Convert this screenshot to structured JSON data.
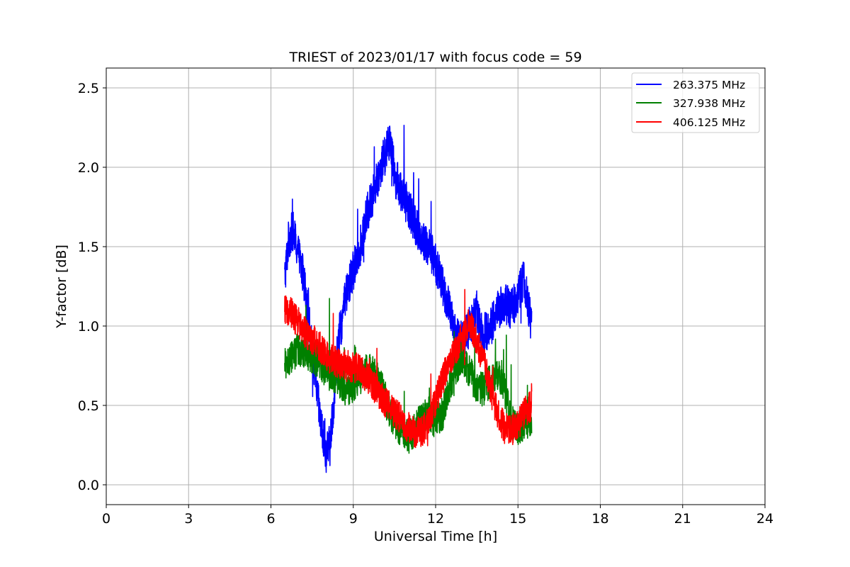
{
  "chart_data": {
    "type": "line",
    "title": "TRIEST of 2023/01/17 with focus code = 59",
    "xlabel": "Universal Time [h]",
    "ylabel": "Y-factor [dB]",
    "xlim": [
      0,
      24
    ],
    "ylim": [
      -0.125,
      2.625
    ],
    "xticks": [
      0,
      3,
      6,
      9,
      12,
      15,
      18,
      21,
      24
    ],
    "xtick_labels": [
      "0",
      "3",
      "6",
      "9",
      "12",
      "15",
      "18",
      "21",
      "24"
    ],
    "yticks": [
      0.0,
      0.5,
      1.0,
      1.5,
      2.0,
      2.5
    ],
    "ytick_labels": [
      "0.0",
      "0.5",
      "1.0",
      "1.5",
      "2.0",
      "2.5"
    ],
    "grid": true,
    "legend_position": "top-right",
    "series": [
      {
        "name": "263.375 MHz",
        "color": "#0000ff",
        "x": [
          6.5,
          6.65,
          6.8,
          7.0,
          7.2,
          7.4,
          7.6,
          7.8,
          8.0,
          8.15,
          8.3,
          8.5,
          8.75,
          9.0,
          9.25,
          9.5,
          9.75,
          10.0,
          10.2,
          10.35,
          10.5,
          10.75,
          11.0,
          11.25,
          11.5,
          11.75,
          12.0,
          12.25,
          12.5,
          12.75,
          13.0,
          13.25,
          13.5,
          13.75,
          14.0,
          14.25,
          14.5,
          14.75,
          15.0,
          15.2,
          15.5
        ],
        "y": [
          1.3,
          1.55,
          1.6,
          1.45,
          1.3,
          1.0,
          0.7,
          0.4,
          0.2,
          0.25,
          0.55,
          0.95,
          1.2,
          1.35,
          1.5,
          1.7,
          1.85,
          2.0,
          2.1,
          2.2,
          1.95,
          1.85,
          1.75,
          1.65,
          1.55,
          1.5,
          1.4,
          1.25,
          1.1,
          0.95,
          0.9,
          1.0,
          1.1,
          0.95,
          1.0,
          1.1,
          1.15,
          1.1,
          1.2,
          1.3,
          1.0
        ]
      },
      {
        "name": "327.938 MHz",
        "color": "#008000",
        "x": [
          6.5,
          6.75,
          7.0,
          7.25,
          7.5,
          7.75,
          8.0,
          8.25,
          8.5,
          8.75,
          9.0,
          9.25,
          9.5,
          9.75,
          10.0,
          10.25,
          10.5,
          10.75,
          11.0,
          11.25,
          11.5,
          11.75,
          12.0,
          12.25,
          12.5,
          12.75,
          13.0,
          13.25,
          13.5,
          13.75,
          14.0,
          14.25,
          14.5,
          14.75,
          15.0,
          15.25,
          15.5
        ],
        "y": [
          0.75,
          0.8,
          0.85,
          0.85,
          0.8,
          0.78,
          0.72,
          0.68,
          0.65,
          0.6,
          0.62,
          0.68,
          0.72,
          0.7,
          0.62,
          0.5,
          0.4,
          0.35,
          0.3,
          0.35,
          0.42,
          0.45,
          0.4,
          0.45,
          0.6,
          0.75,
          0.8,
          0.7,
          0.62,
          0.6,
          0.65,
          0.7,
          0.6,
          0.4,
          0.35,
          0.4,
          0.4
        ]
      },
      {
        "name": "406.125 MHz",
        "color": "#ff0000",
        "x": [
          6.5,
          6.75,
          7.0,
          7.25,
          7.5,
          7.75,
          8.0,
          8.25,
          8.5,
          8.75,
          9.0,
          9.25,
          9.5,
          9.75,
          10.0,
          10.25,
          10.5,
          10.75,
          11.0,
          11.25,
          11.5,
          11.75,
          12.0,
          12.25,
          12.5,
          12.75,
          13.0,
          13.25,
          13.5,
          13.75,
          14.0,
          14.25,
          14.5,
          14.75,
          15.0,
          15.25,
          15.5
        ],
        "y": [
          1.1,
          1.08,
          1.02,
          0.96,
          0.92,
          0.88,
          0.82,
          0.78,
          0.76,
          0.75,
          0.74,
          0.72,
          0.68,
          0.62,
          0.56,
          0.5,
          0.46,
          0.42,
          0.36,
          0.32,
          0.34,
          0.4,
          0.52,
          0.66,
          0.78,
          0.85,
          0.95,
          1.02,
          0.9,
          0.78,
          0.6,
          0.45,
          0.36,
          0.34,
          0.38,
          0.46,
          0.5
        ]
      }
    ]
  }
}
